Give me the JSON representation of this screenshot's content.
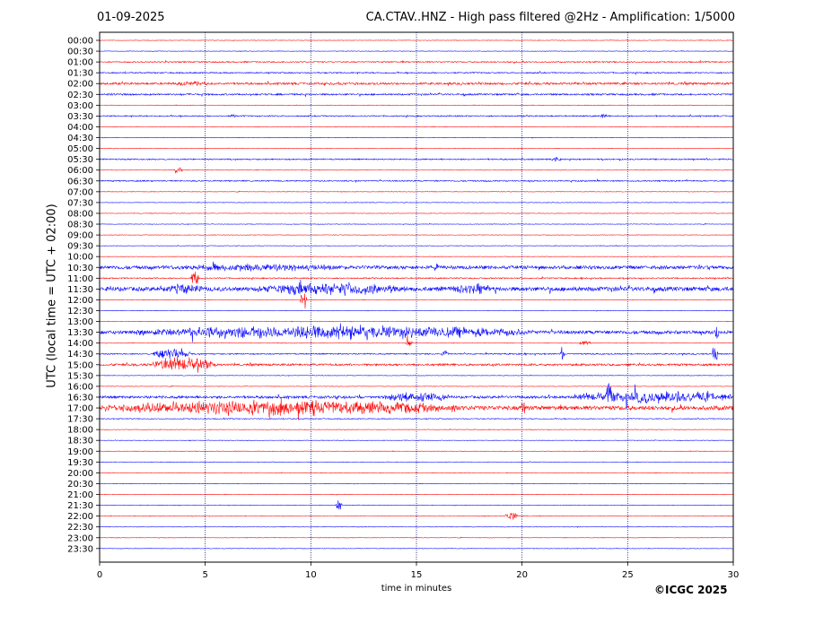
{
  "header": {
    "date": "01-09-2025",
    "title": "CA.CTAV..HNZ - High pass filtered @2Hz - Amplification: 1/5000"
  },
  "footer": {
    "copyright": "©ICGC 2025"
  },
  "chart_data": {
    "type": "line",
    "title": "CA.CTAV..HNZ - High pass filtered @2Hz - Amplification: 1/5000",
    "xlabel": "time in minutes",
    "ylabel": "UTC (local time = UTC + 02:00)",
    "xlim": [
      0,
      30
    ],
    "xticks": [
      0,
      5,
      10,
      15,
      20,
      25,
      30
    ],
    "grid": "vertical dotted at every 5 minutes",
    "colors": {
      "even_row": "#ff0000",
      "odd_row": "#0000ff",
      "grid": "#00007a"
    },
    "rows": [
      "00:00",
      "00:30",
      "01:00",
      "01:30",
      "02:00",
      "02:30",
      "03:00",
      "03:30",
      "04:00",
      "04:30",
      "05:00",
      "05:30",
      "06:00",
      "06:30",
      "07:00",
      "07:30",
      "08:00",
      "08:30",
      "09:00",
      "09:30",
      "10:00",
      "10:30",
      "11:00",
      "11:30",
      "12:00",
      "12:30",
      "13:00",
      "13:30",
      "14:00",
      "14:30",
      "15:00",
      "15:30",
      "16:00",
      "16:30",
      "17:00",
      "17:30",
      "18:00",
      "18:30",
      "19:00",
      "19:30",
      "20:00",
      "20:30",
      "21:00",
      "21:30",
      "22:00",
      "22:30",
      "23:00",
      "23:30"
    ],
    "noise_level": [
      0.6,
      0.6,
      1.5,
      1.5,
      2.5,
      2,
      0.6,
      1.5,
      0.6,
      0.6,
      0.6,
      1.5,
      0.6,
      1.5,
      0.6,
      0.6,
      0.6,
      0.6,
      0.6,
      0.6,
      0.6,
      4,
      1.5,
      5,
      0.6,
      0.6,
      0.6,
      4,
      0.6,
      1.5,
      2.5,
      0.6,
      0.6,
      3,
      5,
      1,
      0.6,
      0.6,
      0.6,
      0.6,
      0.6,
      0.6,
      0.6,
      0.6,
      0.6,
      0.6,
      0.6,
      0.6
    ],
    "bursts": [
      {
        "row": "02:00",
        "x": [
          3.5,
          5.5
        ],
        "amp": 3
      },
      {
        "row": "02:00",
        "x": [
          10.5,
          12.5
        ],
        "amp": 2
      },
      {
        "row": "02:30",
        "x": [
          0,
          1.5
        ],
        "amp": 1.5
      },
      {
        "row": "03:30",
        "x": [
          6.2,
          6.5
        ],
        "amp": 3
      },
      {
        "row": "03:30",
        "x": [
          23.7,
          24
        ],
        "amp": 4
      },
      {
        "row": "05:30",
        "x": [
          21.4,
          21.8
        ],
        "amp": 3
      },
      {
        "row": "06:00",
        "x": [
          3.5,
          3.9
        ],
        "amp": 4
      },
      {
        "row": "10:30",
        "x": [
          2.5,
          12
        ],
        "amp": 5
      },
      {
        "row": "11:00",
        "x": [
          4.3,
          4.7
        ],
        "amp": 12
      },
      {
        "row": "11:30",
        "x": [
          3,
          5
        ],
        "amp": 7
      },
      {
        "row": "11:30",
        "x": [
          7.5,
          14.5
        ],
        "amp": 9
      },
      {
        "row": "11:30",
        "x": [
          16.5,
          18.7
        ],
        "amp": 7
      },
      {
        "row": "12:00",
        "x": [
          9.5,
          9.8
        ],
        "amp": 14
      },
      {
        "row": "13:30",
        "x": [
          1.7,
          20.5
        ],
        "amp": 9
      },
      {
        "row": "13:30",
        "x": [
          29.1,
          29.3
        ],
        "amp": 16
      },
      {
        "row": "14:00",
        "x": [
          14.5,
          14.8
        ],
        "amp": 5
      },
      {
        "row": "14:00",
        "x": [
          22.7,
          23.3
        ],
        "amp": 3
      },
      {
        "row": "14:30",
        "x": [
          2.5,
          4.3
        ],
        "amp": 8
      },
      {
        "row": "14:30",
        "x": [
          16.2,
          16.5
        ],
        "amp": 6
      },
      {
        "row": "14:30",
        "x": [
          21.8,
          22
        ],
        "amp": 10
      },
      {
        "row": "14:30",
        "x": [
          29,
          29.3
        ],
        "amp": 8
      },
      {
        "row": "15:00",
        "x": [
          2.5,
          5.5
        ],
        "amp": 9
      },
      {
        "row": "16:30",
        "x": [
          13.5,
          16.5
        ],
        "amp": 7
      },
      {
        "row": "16:30",
        "x": [
          22.5,
          30
        ],
        "amp": 8
      },
      {
        "row": "16:30",
        "x": [
          24,
          24.3
        ],
        "amp": 22
      },
      {
        "row": "17:00",
        "x": [
          0,
          17
        ],
        "amp": 10
      },
      {
        "row": "17:00",
        "x": [
          19.9,
          20.2
        ],
        "amp": 10
      },
      {
        "row": "21:30",
        "x": [
          11.2,
          11.5
        ],
        "amp": 8
      },
      {
        "row": "22:00",
        "x": [
          19.2,
          19.8
        ],
        "amp": 6
      }
    ]
  }
}
